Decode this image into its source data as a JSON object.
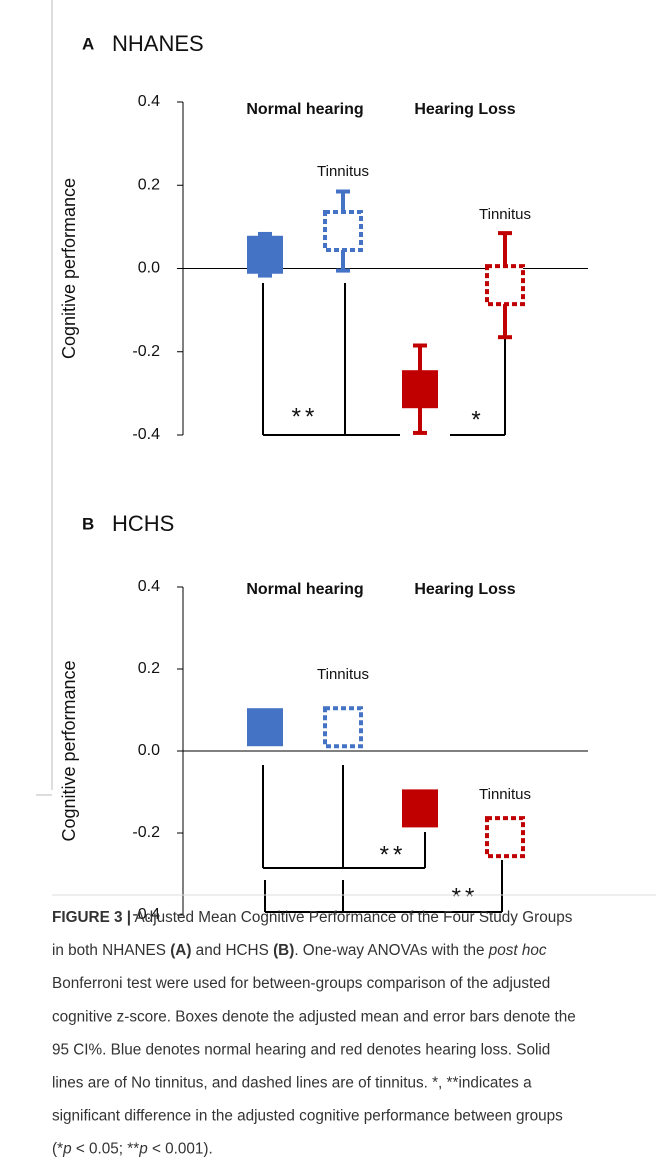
{
  "chart_data": [
    {
      "type": "box-errorbar",
      "panel": "A",
      "title": "NHANES",
      "ylabel": "Cognitive performance",
      "ylim": [
        -0.4,
        0.4
      ],
      "yticks": [
        0.4,
        0.2,
        {
          "value": 0,
          "label": "0.0"
        },
        -0.2,
        -0.4
      ],
      "group_labels": [
        "Normal hearing",
        "Hearing Loss"
      ],
      "values": [
        0.033,
        0.09,
        -0.29,
        -0.04
      ],
      "ci_low": [
        -0.017,
        -0.005,
        -0.395,
        -0.165
      ],
      "ci_high": [
        0.083,
        0.185,
        -0.185,
        0.085
      ],
      "colors": [
        "#4472c4",
        "#4472c4",
        "#c00000",
        "#c00000"
      ],
      "dashed": [
        false,
        true,
        false,
        true
      ],
      "annotations": [
        "Tinnitus",
        "Tinnitus",
        "**",
        "*"
      ]
    },
    {
      "type": "box-errorbar",
      "panel": "B",
      "title": "HCHS",
      "ylabel": "Cognitive performance",
      "ylim": [
        -0.4,
        0.4
      ],
      "yticks": [
        0.4,
        0.2,
        {
          "value": 0,
          "label": "0.0"
        },
        -0.2,
        -0.4
      ],
      "group_labels": [
        "Normal hearing",
        "Hearing Loss"
      ],
      "values": [
        0.058,
        0.058,
        -0.14,
        -0.21
      ],
      "colors": [
        "#4472c4",
        "#4472c4",
        "#c00000",
        "#c00000"
      ],
      "dashed": [
        false,
        true,
        false,
        true
      ],
      "annotations": [
        "Tinnitus",
        "Tinnitus",
        "**",
        "**"
      ]
    }
  ],
  "caption": {
    "lines": [
      [
        {
          "text": "FIGURE 3 |",
          "bold": true
        },
        {
          "text": " Adjusted Mean Cognitive Performance of the Four Study Groups"
        }
      ],
      [
        {
          "text": "in both NHANES "
        },
        {
          "text": "(A)",
          "bold": true
        },
        {
          "text": " and HCHS "
        },
        {
          "text": "(B)",
          "bold": true
        },
        {
          "text": ". One-way ANOVAs with the "
        },
        {
          "text": "post hoc",
          "italic": true
        }
      ],
      [
        {
          "text": "Bonferroni test were used for between-groups comparison of the adjusted"
        }
      ],
      [
        {
          "text": "cognitive z-score. Boxes denote the adjusted mean and error bars denote the"
        }
      ],
      [
        {
          "text": "95 CI%. Blue denotes normal hearing and red denotes hearing loss. Solid"
        }
      ],
      [
        {
          "text": "lines are of No tinnitus, and dashed lines are of tinnitus. *, **indicates a"
        }
      ],
      [
        {
          "text": "significant difference in the adjusted cognitive performance between groups"
        }
      ],
      [
        {
          "text": "(*"
        },
        {
          "text": "p",
          "italic": true
        },
        {
          "text": " < 0.05; **"
        },
        {
          "text": "p",
          "italic": true
        },
        {
          "text": " < 0.001)."
        }
      ]
    ]
  }
}
